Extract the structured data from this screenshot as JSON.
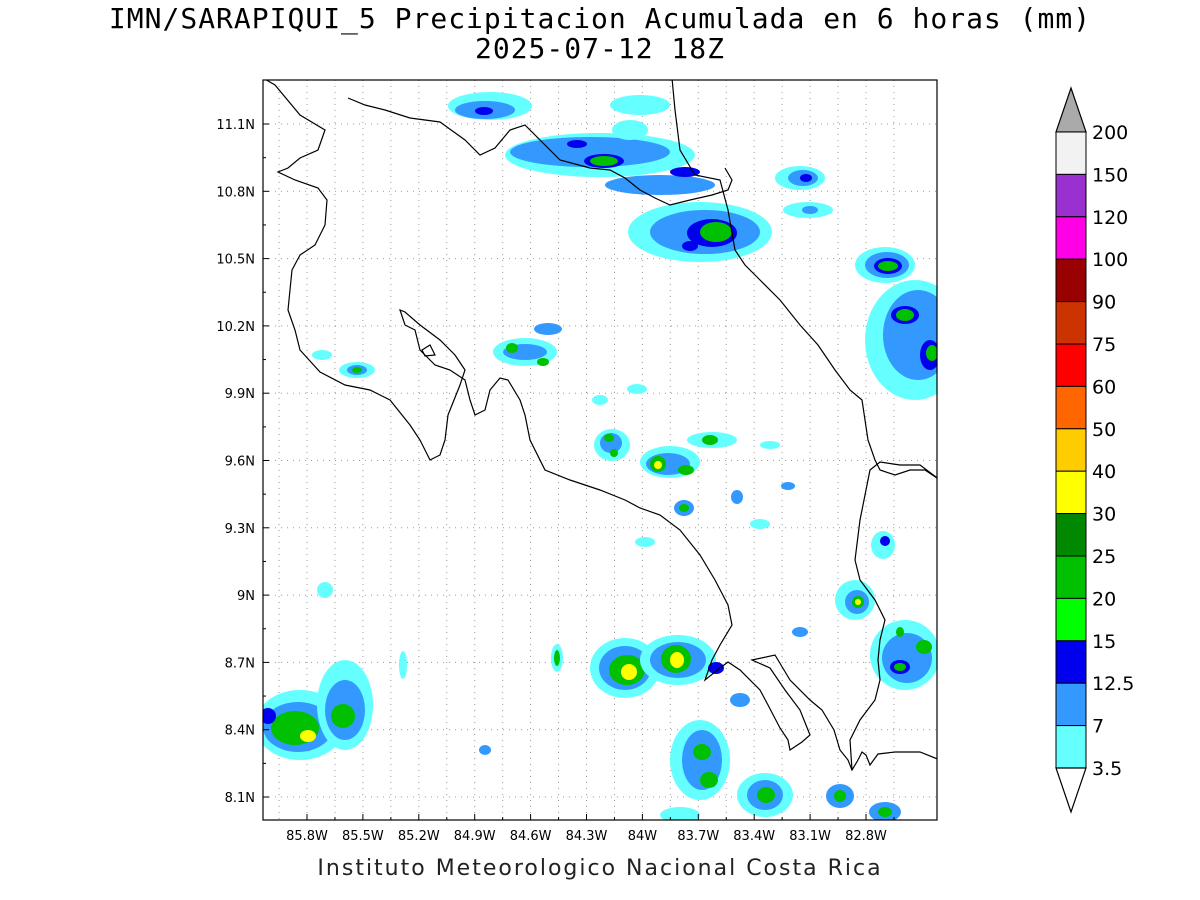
{
  "title": {
    "line1": "IMN/SARAPIQUI_5 Precipitacion Acumulada en 6 horas (mm)",
    "line2": "2025-07-12 18Z"
  },
  "footer": "Instituto Meteorologico Nacional Costa Rica",
  "axes": {
    "lon_ticks": [
      "85.8W",
      "85.5W",
      "85.2W",
      "84.9W",
      "84.6W",
      "84.3W",
      "84W",
      "83.7W",
      "83.4W",
      "83.1W",
      "82.8W"
    ],
    "lat_ticks": [
      "11.1N",
      "10.8N",
      "10.5N",
      "10.2N",
      "9.9N",
      "9.6N",
      "9.3N",
      "9N",
      "8.7N",
      "8.4N",
      "8.1N"
    ]
  },
  "colorbar": {
    "labels": [
      "200",
      "150",
      "120",
      "100",
      "90",
      "75",
      "60",
      "50",
      "40",
      "30",
      "25",
      "20",
      "15",
      "12.5",
      "7",
      "3.5"
    ],
    "colors": [
      "#f2f2f2",
      "#9b30d0",
      "#ff00e6",
      "#990000",
      "#cc3300",
      "#ff0000",
      "#ff6600",
      "#ffcc00",
      "#ffff00",
      "#008800",
      "#00c000",
      "#00ff00",
      "#0000ee",
      "#3399ff",
      "#66ffff"
    ],
    "top_arrow_color": "#aaaaaa",
    "bottom_arrow_color": "#ffffff"
  }
}
